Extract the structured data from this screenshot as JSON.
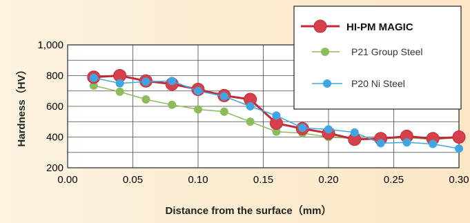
{
  "colors": {
    "hipm": "#d6404a",
    "hipm_edge": "#c02a38",
    "p21": "#8cbb5c",
    "p20": "#3fa6e3"
  },
  "chart_data": {
    "type": "line",
    "xlabel": "Distance from the surface（mm）",
    "ylabel": "Hardness（HV）",
    "xlim": [
      0.0,
      0.3
    ],
    "ylim": [
      200,
      1000
    ],
    "xticks": [
      "0.00",
      "0.05",
      "0.10",
      "0.15",
      "0.20",
      "0.25",
      "0.30"
    ],
    "yticks": [
      "200",
      "400",
      "600",
      "800",
      "1,000"
    ],
    "ytick_values": [
      200,
      400,
      600,
      800,
      1000
    ],
    "xtick_values": [
      0.0,
      0.05,
      0.1,
      0.15,
      0.2,
      0.25,
      0.3
    ],
    "grid": true,
    "legend_position": "top-right",
    "series": [
      {
        "name": "HI-PM MAGIC",
        "x": [
          0.02,
          0.04,
          0.06,
          0.08,
          0.1,
          0.12,
          0.14,
          0.16,
          0.18,
          0.2,
          0.22,
          0.24,
          0.26,
          0.28,
          0.3
        ],
        "y": [
          790,
          800,
          765,
          745,
          710,
          670,
          645,
          490,
          455,
          425,
          385,
          390,
          405,
          390,
          400
        ]
      },
      {
        "name": "P21 Group Steel",
        "x": [
          0.02,
          0.04,
          0.06,
          0.08,
          0.1,
          0.12,
          0.14,
          0.16,
          0.18,
          0.2,
          0.22,
          0.24,
          0.26,
          0.28,
          0.3
        ],
        "y": [
          735,
          695,
          645,
          610,
          580,
          565,
          500,
          435,
          425,
          400,
          390,
          390,
          395,
          385,
          395
        ]
      },
      {
        "name": "P20 Ni Steel",
        "x": [
          0.02,
          0.04,
          0.06,
          0.08,
          0.1,
          0.12,
          0.14,
          0.16,
          0.18,
          0.2,
          0.22,
          0.24,
          0.26,
          0.28,
          0.3
        ],
        "y": [
          785,
          750,
          760,
          765,
          700,
          665,
          600,
          540,
          460,
          450,
          430,
          360,
          365,
          355,
          325
        ]
      }
    ]
  }
}
